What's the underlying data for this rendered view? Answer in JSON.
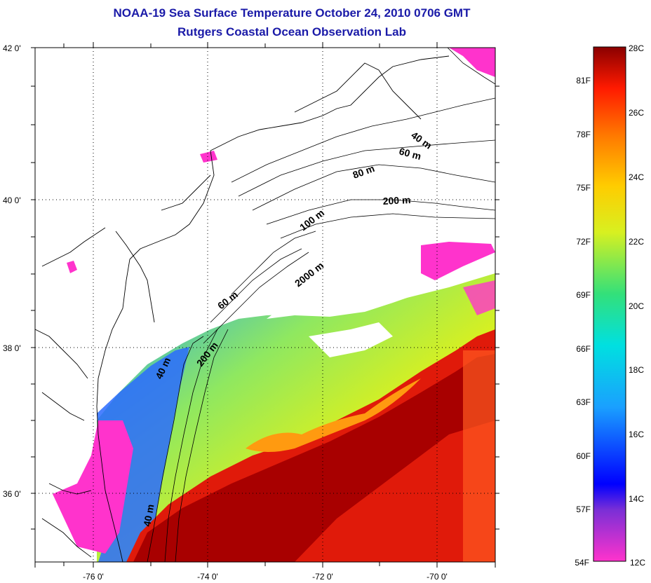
{
  "title": "NOAA-19 Sea Surface Temperature October 24, 2010 0706 GMT",
  "subtitle": "Rutgers Coastal Ocean Observation Lab",
  "map": {
    "lat_labels": [
      "42 0'",
      "40 0'",
      "38 0'",
      "36 0'"
    ],
    "lon_labels": [
      "-76 0'",
      "-74 0'",
      "-72 0'",
      "-70 0'"
    ],
    "depth_labels": {
      "north_40": "40 m",
      "north_60": "60 m",
      "north_80": "80 m",
      "north_200": "200 m",
      "north_100": "100 m",
      "mid_2000": "2000 m",
      "mid_60": "60 m",
      "south_200": "200 m",
      "south_40": "40 m",
      "south_40b": "40 m"
    }
  },
  "colorbar": {
    "celsius_labels": [
      "28C",
      "26C",
      "24C",
      "22C",
      "20C",
      "18C",
      "16C",
      "14C",
      "12C"
    ],
    "fahrenheit_labels": [
      "81F",
      "78F",
      "75F",
      "72F",
      "69F",
      "66F",
      "63F",
      "60F",
      "57F",
      "54F"
    ],
    "colors": [
      "#ff33cc",
      "#7a2fd6",
      "#0000ff",
      "#1aa0ff",
      "#00e0e0",
      "#33e07a",
      "#d8f020",
      "#ffcc00",
      "#ff7700",
      "#ff1a00",
      "#8a0000"
    ]
  }
}
